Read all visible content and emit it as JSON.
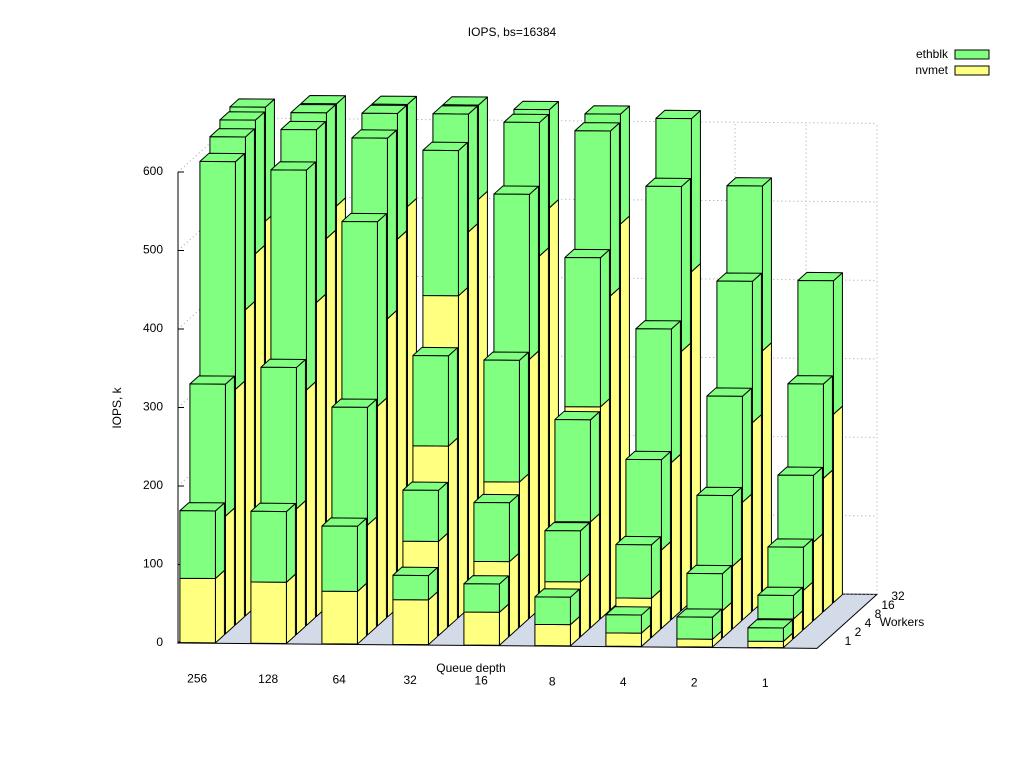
{
  "chart_data": {
    "type": "bar3d",
    "title": "IOPS, bs=16384",
    "xlabel": "Queue depth",
    "ylabel": "Workers",
    "zlabel": "IOPS, k",
    "categories": [
      "256",
      "128",
      "64",
      "32",
      "16",
      "8",
      "4",
      "2",
      "1"
    ],
    "workers": [
      "1",
      "2",
      "4",
      "8",
      "16",
      "32"
    ],
    "zlim": [
      0,
      600
    ],
    "zticks": [
      0,
      100,
      200,
      300,
      400,
      500,
      600
    ],
    "grid": true,
    "series": [
      {
        "name": "ethblk",
        "color": "#80ff80",
        "values": [
          [
            86,
            90,
            83,
            31,
            36,
            35,
            23,
            28,
            17
          ],
          [
            168,
            180,
            150,
            65,
            75,
            65,
            68,
            47,
            30
          ],
          [
            290,
            280,
            235,
            115,
            155,
            130,
            115,
            90,
            55
          ],
          [
            220,
            220,
            230,
            185,
            210,
            190,
            170,
            135,
            85
          ],
          [
            170,
            160,
            160,
            150,
            170,
            210,
            210,
            180,
            120
          ],
          [
            145,
            130,
            130,
            120,
            125,
            140,
            195,
            210,
            170
          ]
        ]
      },
      {
        "name": "nvmet",
        "color": "#ffff80",
        "values": [
          [
            82,
            78,
            67,
            57,
            42,
            27,
            17,
            10,
            8
          ],
          [
            150,
            160,
            140,
            120,
            95,
            70,
            50,
            35,
            25
          ],
          [
            300,
            300,
            280,
            230,
            185,
            135,
            100,
            80,
            50
          ],
          [
            390,
            400,
            380,
            410,
            330,
            270,
            200,
            150,
            100
          ],
          [
            450,
            470,
            470,
            480,
            450,
            400,
            330,
            240,
            170
          ],
          [
            480,
            500,
            500,
            510,
            500,
            480,
            420,
            320,
            240
          ]
        ]
      }
    ]
  }
}
